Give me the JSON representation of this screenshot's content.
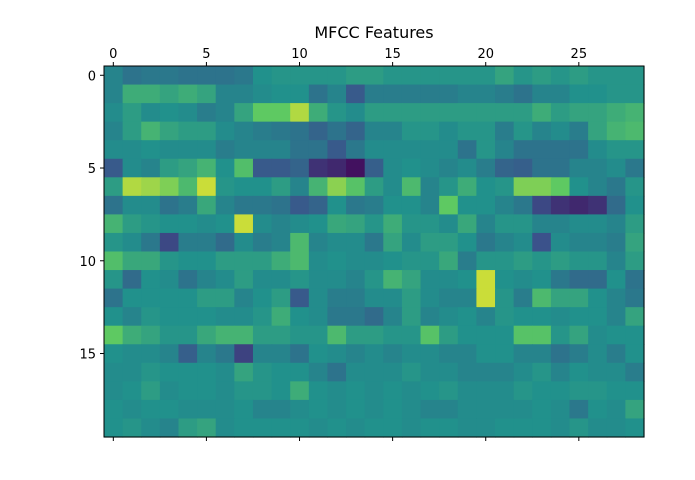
{
  "chart_data": {
    "type": "heatmap",
    "title": "MFCC Features",
    "xlabel": "",
    "ylabel": "",
    "n_cols": 29,
    "n_rows": 20,
    "x_axis_position": "top-and-bottom",
    "y_axis_inverted": true,
    "x_ticks": [
      0,
      5,
      10,
      15,
      20,
      25
    ],
    "x_tick_labels": [
      "0",
      "5",
      "10",
      "15",
      "20",
      "25"
    ],
    "y_ticks": [
      0,
      5,
      10,
      15
    ],
    "y_tick_labels": [
      "0",
      "5",
      "10",
      "15"
    ],
    "colormap": "viridis",
    "value_range": [
      0,
      1
    ],
    "grid": false,
    "values": [
      [
        0.45,
        0.38,
        0.4,
        0.4,
        0.38,
        0.38,
        0.38,
        0.4,
        0.5,
        0.52,
        0.52,
        0.52,
        0.52,
        0.55,
        0.55,
        0.52,
        0.52,
        0.52,
        0.52,
        0.52,
        0.52,
        0.58,
        0.52,
        0.55,
        0.52,
        0.55,
        0.52,
        0.52,
        0.52
      ],
      [
        0.45,
        0.62,
        0.62,
        0.58,
        0.62,
        0.58,
        0.45,
        0.45,
        0.48,
        0.5,
        0.5,
        0.38,
        0.45,
        0.28,
        0.42,
        0.42,
        0.42,
        0.42,
        0.42,
        0.45,
        0.45,
        0.42,
        0.38,
        0.45,
        0.45,
        0.5,
        0.5,
        0.52,
        0.52
      ],
      [
        0.48,
        0.55,
        0.48,
        0.5,
        0.48,
        0.42,
        0.45,
        0.58,
        0.75,
        0.75,
        0.88,
        0.62,
        0.52,
        0.48,
        0.55,
        0.55,
        0.55,
        0.55,
        0.55,
        0.55,
        0.55,
        0.55,
        0.55,
        0.62,
        0.55,
        0.58,
        0.58,
        0.62,
        0.65
      ],
      [
        0.45,
        0.55,
        0.65,
        0.58,
        0.55,
        0.55,
        0.48,
        0.45,
        0.42,
        0.4,
        0.38,
        0.32,
        0.38,
        0.32,
        0.45,
        0.45,
        0.52,
        0.52,
        0.48,
        0.52,
        0.52,
        0.42,
        0.52,
        0.45,
        0.48,
        0.42,
        0.58,
        0.65,
        0.68
      ],
      [
        0.48,
        0.48,
        0.5,
        0.48,
        0.48,
        0.48,
        0.42,
        0.45,
        0.45,
        0.45,
        0.38,
        0.38,
        0.28,
        0.4,
        0.48,
        0.48,
        0.48,
        0.48,
        0.48,
        0.38,
        0.52,
        0.45,
        0.38,
        0.38,
        0.38,
        0.38,
        0.48,
        0.52,
        0.52
      ],
      [
        0.28,
        0.48,
        0.45,
        0.55,
        0.58,
        0.65,
        0.5,
        0.7,
        0.28,
        0.28,
        0.32,
        0.15,
        0.12,
        0.05,
        0.3,
        0.48,
        0.5,
        0.48,
        0.45,
        0.48,
        0.42,
        0.32,
        0.3,
        0.38,
        0.38,
        0.45,
        0.45,
        0.48,
        0.4
      ],
      [
        0.55,
        0.88,
        0.85,
        0.8,
        0.68,
        0.92,
        0.52,
        0.5,
        0.5,
        0.55,
        0.45,
        0.65,
        0.82,
        0.72,
        0.55,
        0.48,
        0.68,
        0.45,
        0.52,
        0.62,
        0.5,
        0.52,
        0.8,
        0.8,
        0.75,
        0.5,
        0.45,
        0.4,
        0.52
      ],
      [
        0.38,
        0.48,
        0.48,
        0.38,
        0.42,
        0.6,
        0.45,
        0.4,
        0.4,
        0.38,
        0.28,
        0.32,
        0.5,
        0.4,
        0.42,
        0.5,
        0.5,
        0.45,
        0.75,
        0.5,
        0.5,
        0.45,
        0.4,
        0.22,
        0.15,
        0.12,
        0.15,
        0.35,
        0.5
      ],
      [
        0.65,
        0.55,
        0.52,
        0.5,
        0.5,
        0.48,
        0.5,
        0.92,
        0.48,
        0.45,
        0.48,
        0.5,
        0.6,
        0.58,
        0.52,
        0.62,
        0.52,
        0.52,
        0.48,
        0.6,
        0.45,
        0.52,
        0.52,
        0.45,
        0.45,
        0.48,
        0.48,
        0.45,
        0.55
      ],
      [
        0.52,
        0.48,
        0.4,
        0.22,
        0.42,
        0.42,
        0.35,
        0.48,
        0.42,
        0.45,
        0.68,
        0.45,
        0.48,
        0.48,
        0.4,
        0.58,
        0.48,
        0.55,
        0.55,
        0.5,
        0.4,
        0.45,
        0.48,
        0.25,
        0.48,
        0.45,
        0.45,
        0.42,
        0.58
      ],
      [
        0.7,
        0.6,
        0.6,
        0.52,
        0.5,
        0.5,
        0.55,
        0.55,
        0.55,
        0.62,
        0.68,
        0.48,
        0.5,
        0.48,
        0.48,
        0.5,
        0.52,
        0.52,
        0.6,
        0.42,
        0.52,
        0.52,
        0.55,
        0.52,
        0.55,
        0.52,
        0.52,
        0.45,
        0.55
      ],
      [
        0.52,
        0.35,
        0.5,
        0.48,
        0.38,
        0.45,
        0.48,
        0.55,
        0.48,
        0.48,
        0.52,
        0.48,
        0.48,
        0.45,
        0.52,
        0.65,
        0.58,
        0.48,
        0.48,
        0.5,
        0.92,
        0.5,
        0.48,
        0.5,
        0.4,
        0.35,
        0.35,
        0.5,
        0.38
      ],
      [
        0.38,
        0.5,
        0.5,
        0.5,
        0.5,
        0.55,
        0.55,
        0.45,
        0.5,
        0.55,
        0.28,
        0.48,
        0.42,
        0.42,
        0.48,
        0.48,
        0.55,
        0.48,
        0.45,
        0.45,
        0.92,
        0.52,
        0.42,
        0.68,
        0.58,
        0.58,
        0.5,
        0.45,
        0.4
      ],
      [
        0.5,
        0.45,
        0.52,
        0.5,
        0.5,
        0.5,
        0.48,
        0.48,
        0.52,
        0.62,
        0.5,
        0.48,
        0.4,
        0.4,
        0.35,
        0.45,
        0.55,
        0.45,
        0.48,
        0.5,
        0.45,
        0.52,
        0.5,
        0.5,
        0.48,
        0.5,
        0.5,
        0.45,
        0.58
      ],
      [
        0.75,
        0.62,
        0.58,
        0.52,
        0.52,
        0.6,
        0.65,
        0.65,
        0.55,
        0.55,
        0.52,
        0.52,
        0.68,
        0.55,
        0.55,
        0.52,
        0.52,
        0.72,
        0.55,
        0.5,
        0.5,
        0.5,
        0.72,
        0.72,
        0.52,
        0.58,
        0.48,
        0.5,
        0.5
      ],
      [
        0.5,
        0.48,
        0.48,
        0.45,
        0.3,
        0.45,
        0.4,
        0.2,
        0.45,
        0.45,
        0.38,
        0.5,
        0.48,
        0.45,
        0.48,
        0.45,
        0.48,
        0.48,
        0.45,
        0.45,
        0.5,
        0.5,
        0.45,
        0.45,
        0.38,
        0.42,
        0.48,
        0.42,
        0.5
      ],
      [
        0.48,
        0.48,
        0.52,
        0.5,
        0.5,
        0.5,
        0.48,
        0.58,
        0.52,
        0.5,
        0.5,
        0.45,
        0.38,
        0.48,
        0.48,
        0.48,
        0.52,
        0.48,
        0.48,
        0.45,
        0.45,
        0.45,
        0.48,
        0.52,
        0.45,
        0.5,
        0.48,
        0.48,
        0.42
      ],
      [
        0.48,
        0.5,
        0.55,
        0.48,
        0.5,
        0.5,
        0.48,
        0.52,
        0.52,
        0.5,
        0.62,
        0.5,
        0.48,
        0.5,
        0.48,
        0.5,
        0.48,
        0.5,
        0.52,
        0.48,
        0.48,
        0.48,
        0.52,
        0.5,
        0.5,
        0.52,
        0.52,
        0.5,
        0.5
      ],
      [
        0.5,
        0.48,
        0.5,
        0.5,
        0.48,
        0.48,
        0.48,
        0.5,
        0.45,
        0.45,
        0.48,
        0.5,
        0.48,
        0.5,
        0.48,
        0.5,
        0.48,
        0.45,
        0.45,
        0.48,
        0.48,
        0.48,
        0.48,
        0.5,
        0.48,
        0.4,
        0.5,
        0.48,
        0.58
      ],
      [
        0.5,
        0.52,
        0.48,
        0.45,
        0.55,
        0.58,
        0.48,
        0.5,
        0.5,
        0.5,
        0.5,
        0.48,
        0.5,
        0.48,
        0.5,
        0.5,
        0.48,
        0.5,
        0.5,
        0.48,
        0.48,
        0.5,
        0.5,
        0.5,
        0.48,
        0.52,
        0.48,
        0.48,
        0.5
      ]
    ]
  }
}
